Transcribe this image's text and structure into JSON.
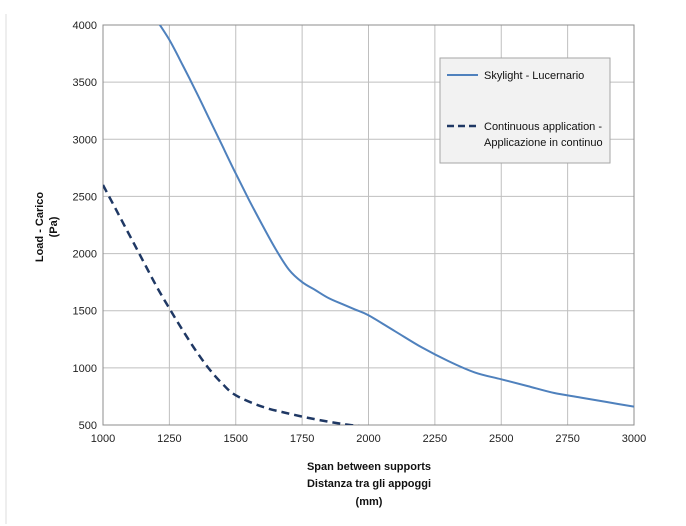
{
  "chart_data": {
    "type": "line",
    "title": "",
    "xlabel_lines": [
      "Span between supports",
      "Distanza tra gli appoggi",
      "(mm)"
    ],
    "ylabel_lines": [
      "Load - Carico",
      "(Pa)"
    ],
    "xlim": [
      1000,
      3000
    ],
    "ylim": [
      500,
      4000
    ],
    "x_ticks": [
      1000,
      1250,
      1500,
      1750,
      2000,
      2250,
      2500,
      2750,
      3000
    ],
    "y_ticks": [
      500,
      1000,
      1500,
      2000,
      2500,
      3000,
      3500,
      4000
    ],
    "grid": true,
    "legend_position": "top-right",
    "series": [
      {
        "name": "Skylight - Lucernario",
        "style": "solid",
        "color": "#4f81bd",
        "x": [
          1200,
          1250,
          1300,
          1350,
          1400,
          1450,
          1500,
          1550,
          1600,
          1650,
          1700,
          1750,
          1800,
          1850,
          1900,
          1950,
          2000,
          2100,
          2200,
          2300,
          2400,
          2500,
          2600,
          2700,
          2800,
          2900,
          3000
        ],
        "y": [
          4050,
          3870,
          3650,
          3420,
          3180,
          2940,
          2700,
          2470,
          2250,
          2040,
          1860,
          1750,
          1680,
          1610,
          1560,
          1510,
          1460,
          1320,
          1180,
          1060,
          960,
          900,
          840,
          780,
          740,
          700,
          660
        ]
      },
      {
        "name": "Continuous application - Applicazione in continuo",
        "name_lines": [
          "Continuous application -",
          "Applicazione in continuo"
        ],
        "style": "dashed",
        "color": "#1f3864",
        "x": [
          1000,
          1050,
          1100,
          1150,
          1200,
          1250,
          1300,
          1350,
          1400,
          1450,
          1500,
          1600,
          1700,
          1800,
          1900,
          2000
        ],
        "y": [
          2600,
          2380,
          2160,
          1940,
          1720,
          1520,
          1330,
          1150,
          990,
          860,
          760,
          660,
          600,
          550,
          510,
          480
        ]
      }
    ]
  }
}
